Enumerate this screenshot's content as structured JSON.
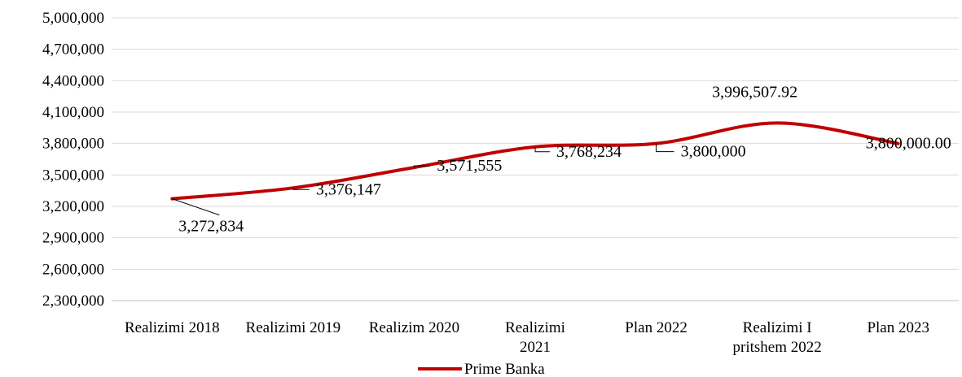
{
  "chart_data": {
    "type": "line",
    "categories": [
      [
        "Realizimi 2018"
      ],
      [
        "Realizimi 2019"
      ],
      [
        "Realizim  2020"
      ],
      [
        "Realizimi",
        "2021"
      ],
      [
        "Plan 2022"
      ],
      [
        "Realizimi I",
        "pritshem 2022"
      ],
      [
        "Plan 2023"
      ]
    ],
    "series": [
      {
        "name": "Prime Banka",
        "values": [
          3272834,
          3376147,
          3571555,
          3768234,
          3800000,
          3996507.92,
          3800000
        ],
        "labels": [
          "3,272,834",
          "3,376,147",
          "3,571,555",
          "3,768,234",
          "3,800,000",
          "3,996,507.92",
          "3,800,000.00"
        ],
        "color": "#C00000"
      }
    ],
    "y_ticks": [
      "5,000,000",
      "4,700,000",
      "4,400,000",
      "4,100,000",
      "3,800,000",
      "3,500,000",
      "3,200,000",
      "2,900,000",
      "2,600,000",
      "2,300,000"
    ],
    "ylim": [
      2300000,
      5000000
    ],
    "y_step": 300000,
    "grid": true,
    "legend_position": "bottom",
    "gridline_color": "#D9D9D9",
    "smooth": true
  }
}
